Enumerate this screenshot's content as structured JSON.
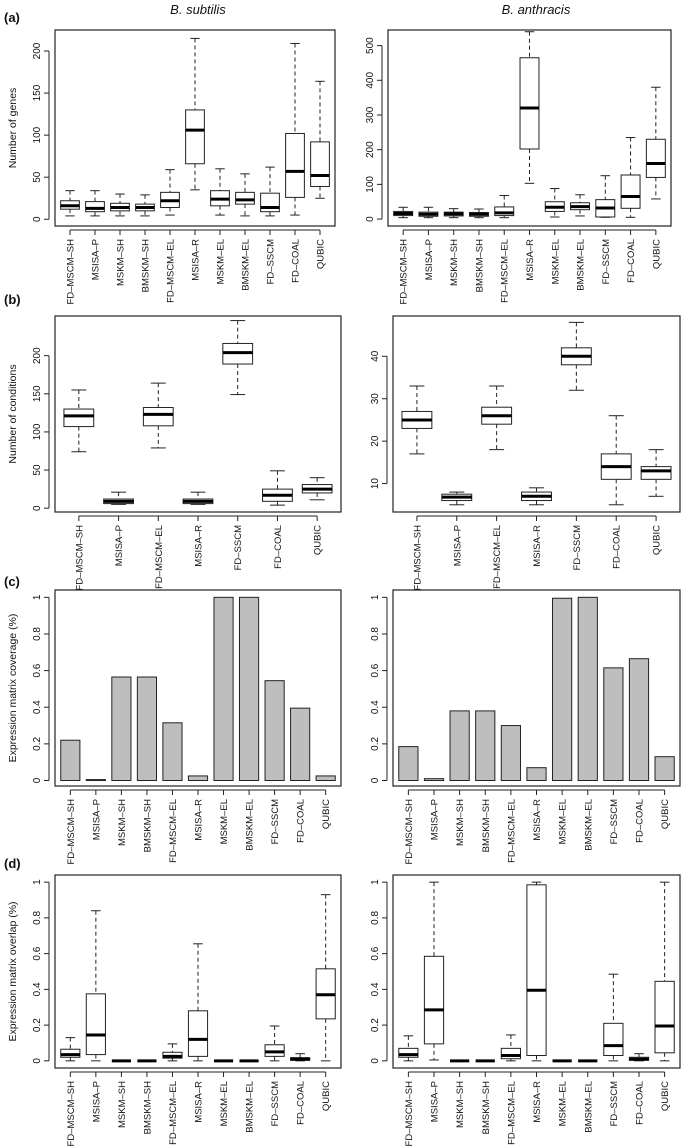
{
  "titles": [
    "B. subtilis",
    "B. anthracis"
  ],
  "chart_data": [
    {
      "panel": "(a)",
      "type": "box",
      "species": "B. subtilis",
      "ylabel": "Number of genes",
      "ylim": [
        -8,
        225
      ],
      "yticks": [
        0,
        50,
        100,
        150,
        200
      ],
      "ytick_labels": [
        "0",
        "50",
        "100",
        "150",
        "200"
      ],
      "categories": [
        "FD–MSCM–SH",
        "MSISA–P",
        "MSKM–SH",
        "BMSKM–SH",
        "FD–MSCM–EL",
        "MSISA–R",
        "MSKM–EL",
        "BMSKM–EL",
        "FD–SSCM",
        "FD–COAL",
        "QUBIC"
      ],
      "boxes": [
        [
          4,
          12,
          16,
          22,
          34
        ],
        [
          4,
          9,
          13,
          21,
          34
        ],
        [
          4,
          10,
          14,
          19,
          30
        ],
        [
          4,
          10,
          14,
          18,
          29
        ],
        [
          5,
          14,
          22,
          32,
          59
        ],
        [
          35,
          66,
          106,
          130,
          215
        ],
        [
          5,
          16,
          24,
          34,
          60
        ],
        [
          4,
          18,
          23,
          32,
          54
        ],
        [
          4,
          9,
          14,
          31,
          62
        ],
        [
          5,
          26,
          57,
          102,
          209
        ],
        [
          25,
          39,
          52,
          92,
          164
        ]
      ]
    },
    {
      "panel": "",
      "type": "box",
      "species": "B. anthracis",
      "ylabel": "",
      "ylim": [
        -20,
        545
      ],
      "yticks": [
        0,
        100,
        200,
        300,
        400,
        500
      ],
      "ytick_labels": [
        "0",
        "100",
        "200",
        "300",
        "400",
        "500"
      ],
      "categories": [
        "FD–MSCM–SH",
        "MSISA–P",
        "MSKM–SH",
        "BMSKM–SH",
        "FD–MSCM–EL",
        "MSISA–R",
        "MSKM–EL",
        "BMSKM–EL",
        "FD–SSCM",
        "FD–COAL",
        "QUBIC"
      ],
      "boxes": [
        [
          4,
          10,
          16,
          22,
          34
        ],
        [
          4,
          8,
          14,
          20,
          34
        ],
        [
          4,
          9,
          15,
          20,
          30
        ],
        [
          4,
          8,
          14,
          19,
          29
        ],
        [
          4,
          10,
          18,
          35,
          68
        ],
        [
          103,
          202,
          320,
          465,
          540
        ],
        [
          6,
          22,
          34,
          50,
          88
        ],
        [
          9,
          27,
          36,
          47,
          70
        ],
        [
          5,
          6,
          32,
          56,
          125
        ],
        [
          5,
          31,
          65,
          127,
          235
        ],
        [
          58,
          120,
          160,
          230,
          380
        ]
      ]
    },
    {
      "panel": "(b)",
      "type": "box",
      "species": "B. subtilis",
      "ylabel": "Number of conditions",
      "ylim": [
        -5,
        252
      ],
      "yticks": [
        0,
        50,
        100,
        150,
        200
      ],
      "ytick_labels": [
        "0",
        "50",
        "100",
        "150",
        "200"
      ],
      "categories": [
        "FD–MSCM–SH",
        "MSISA–P",
        "FD–MSCM–EL",
        "MSISA–R",
        "FD–SSCM",
        "FD–COAL",
        "QUBIC"
      ],
      "boxes": [
        [
          74,
          107,
          121,
          130,
          155
        ],
        [
          5,
          6,
          9,
          12,
          21
        ],
        [
          79,
          108,
          123,
          132,
          164
        ],
        [
          5,
          6,
          9,
          12,
          21
        ],
        [
          149,
          189,
          204,
          216,
          246
        ],
        [
          4,
          9,
          17,
          25,
          49
        ],
        [
          11,
          20,
          25,
          31,
          40
        ]
      ]
    },
    {
      "panel": "",
      "type": "box",
      "species": "B. anthracis",
      "ylabel": "",
      "ylim": [
        3.3,
        49.5
      ],
      "yticks": [
        10,
        20,
        30,
        40
      ],
      "ytick_labels": [
        "10",
        "20",
        "30",
        "40"
      ],
      "categories": [
        "FD–MSCM–SH",
        "MSISA–P",
        "FD–MSCM–EL",
        "MSISA–R",
        "FD–SSCM",
        "FD–COAL",
        "QUBIC"
      ],
      "boxes": [
        [
          17,
          23,
          25,
          27,
          33
        ],
        [
          5,
          6,
          6.8,
          7.5,
          8
        ],
        [
          18,
          24,
          26,
          28,
          33
        ],
        [
          5,
          6,
          7,
          8,
          9
        ],
        [
          32,
          38,
          40,
          42,
          48
        ],
        [
          5,
          11,
          14,
          17,
          26
        ],
        [
          7,
          11,
          13,
          14,
          18
        ]
      ]
    },
    {
      "panel": "(c)",
      "type": "bar",
      "species": "B. subtilis",
      "ylabel": "Expression matrix coverage (%)",
      "ylim": [
        -0.03,
        1.04
      ],
      "yticks": [
        0,
        0.2,
        0.4,
        0.6,
        0.8,
        1
      ],
      "ytick_labels": [
        "0",
        "0.2",
        "0.4",
        "0.6",
        "0.8",
        "1"
      ],
      "categories": [
        "FD–MSCM–SH",
        "MSISA–P",
        "MSKM–SH",
        "BMSKM–SH",
        "FD–MSCM–EL",
        "MSISA–R",
        "MSKM–EL",
        "BMSKM–EL",
        "FD–SSCM",
        "FD–COAL",
        "QUBIC"
      ],
      "values": [
        0.22,
        0.005,
        0.565,
        0.565,
        0.315,
        0.025,
        1.0,
        1.0,
        0.545,
        0.395,
        0.025
      ]
    },
    {
      "panel": "",
      "type": "bar",
      "species": "B. anthracis",
      "ylabel": "",
      "ylim": [
        -0.03,
        1.04
      ],
      "yticks": [
        0,
        0.2,
        0.4,
        0.6,
        0.8,
        1
      ],
      "ytick_labels": [
        "0",
        "0.2",
        "0.4",
        "0.6",
        "0.8",
        "1"
      ],
      "categories": [
        "FD–MSCM–SH",
        "MSISA–P",
        "MSKM–SH",
        "BMSKM–SH",
        "FD–MSCM–EL",
        "MSISA–R",
        "MSKM–EL",
        "BMSKM–EL",
        "FD–SSCM",
        "FD–COAL",
        "QUBIC"
      ],
      "values": [
        0.185,
        0.01,
        0.38,
        0.38,
        0.3,
        0.07,
        0.995,
        1.0,
        0.615,
        0.665,
        0.13
      ]
    },
    {
      "panel": "(d)",
      "type": "box",
      "species": "B. subtilis",
      "ylabel": "Expression matrix overlap (%)",
      "ylim": [
        -0.04,
        1.04
      ],
      "yticks": [
        0,
        0.2,
        0.4,
        0.6,
        0.8,
        1
      ],
      "ytick_labels": [
        "0",
        "0.2",
        "0.4",
        "0.6",
        "0.8",
        "1"
      ],
      "categories": [
        "FD–MSCM–SH",
        "MSISA–P",
        "MSKM–SH",
        "BMSKM–SH",
        "FD–MSCM–EL",
        "MSISA–R",
        "MSKM–EL",
        "BMSKM–EL",
        "FD–SSCM",
        "FD–COAL",
        "QUBIC"
      ],
      "boxes": [
        [
          0,
          0.02,
          0.035,
          0.065,
          0.13
        ],
        [
          0,
          0.035,
          0.145,
          0.375,
          0.84
        ],
        [
          0,
          0,
          0,
          0,
          0
        ],
        [
          0,
          0,
          0,
          0,
          0
        ],
        [
          0,
          0.015,
          0.025,
          0.048,
          0.095
        ],
        [
          0,
          0.025,
          0.12,
          0.28,
          0.655
        ],
        [
          0,
          0,
          0,
          0,
          0
        ],
        [
          0,
          0,
          0,
          0,
          0
        ],
        [
          0,
          0.025,
          0.05,
          0.09,
          0.195
        ],
        [
          0,
          0.003,
          0.01,
          0.018,
          0.04
        ],
        [
          0,
          0.235,
          0.37,
          0.515,
          0.93
        ]
      ]
    },
    {
      "panel": "",
      "type": "box",
      "species": "B. anthracis",
      "ylabel": "",
      "ylim": [
        -0.04,
        1.04
      ],
      "yticks": [
        0,
        0.2,
        0.4,
        0.6,
        0.8,
        1
      ],
      "ytick_labels": [
        "0",
        "0.2",
        "0.4",
        "0.6",
        "0.8",
        "1"
      ],
      "categories": [
        "FD–MSCM–SH",
        "MSISA–P",
        "MSKM–SH",
        "BMSKM–SH",
        "FD–MSCM–EL",
        "MSISA–R",
        "MSKM–EL",
        "BMSKM–EL",
        "FD–SSCM",
        "FD–COAL",
        "QUBIC"
      ],
      "boxes": [
        [
          0,
          0.02,
          0.035,
          0.07,
          0.14
        ],
        [
          0.005,
          0.095,
          0.285,
          0.585,
          1.0
        ],
        [
          0,
          0,
          0,
          0,
          0
        ],
        [
          0,
          0,
          0,
          0,
          0
        ],
        [
          0,
          0.012,
          0.03,
          0.07,
          0.145
        ],
        [
          0,
          0.03,
          0.395,
          0.985,
          1.0
        ],
        [
          0,
          0,
          0,
          0,
          0
        ],
        [
          0,
          0,
          0,
          0,
          0
        ],
        [
          0,
          0.03,
          0.085,
          0.21,
          0.485
        ],
        [
          0,
          0.003,
          0.01,
          0.02,
          0.04
        ],
        [
          0,
          0.045,
          0.195,
          0.445,
          1.0
        ]
      ]
    }
  ]
}
